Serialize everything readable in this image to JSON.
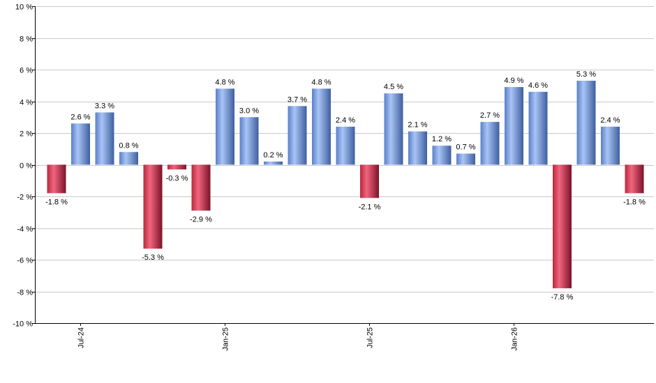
{
  "chart_data": {
    "type": "bar",
    "title": "",
    "xlabel": "",
    "ylabel": "",
    "ylim": [
      -10,
      10
    ],
    "y_ticks": [
      -10,
      -8,
      -6,
      -4,
      -2,
      0,
      2,
      4,
      6,
      8,
      10
    ],
    "y_tick_labels": [
      "-10 %",
      "-8 %",
      "-6 %",
      "-4 %",
      "-2 %",
      "0 %",
      "2 %",
      "4 %",
      "6 %",
      "8 %",
      "10 %"
    ],
    "grid": true,
    "legend": "none",
    "x_tick_labels": [
      {
        "label": "Jul-24",
        "index": 1
      },
      {
        "label": "Jan-25",
        "index": 7
      },
      {
        "label": "Jul-25",
        "index": 13
      },
      {
        "label": "Jan-26",
        "index": 19
      }
    ],
    "values": [
      -1.8,
      2.6,
      3.3,
      0.8,
      -5.3,
      -0.3,
      -2.9,
      4.8,
      3.0,
      0.2,
      3.7,
      4.8,
      2.4,
      -2.1,
      4.5,
      2.1,
      1.2,
      0.7,
      2.7,
      4.9,
      4.6,
      -7.8,
      5.3,
      2.4,
      -1.8
    ],
    "data_labels": [
      "-1.8 %",
      "2.6 %",
      "3.3 %",
      "0.8 %",
      "-5.3 %",
      "-0.3 %",
      "-2.9 %",
      "4.8 %",
      "3.0 %",
      "0.2 %",
      "3.7 %",
      "4.8 %",
      "2.4 %",
      "-2.1 %",
      "4.5 %",
      "2.1 %",
      "1.2 %",
      "0.7 %",
      "2.7 %",
      "4.9 %",
      "4.6 %",
      "-7.8 %",
      "5.3 %",
      "2.4 %",
      "-1.8 %"
    ],
    "colors": {
      "positive_light": "#a9c4f5",
      "positive_dark": "#4a6fb8",
      "negative_light": "#f0667e",
      "negative_dark": "#8c1631"
    }
  }
}
